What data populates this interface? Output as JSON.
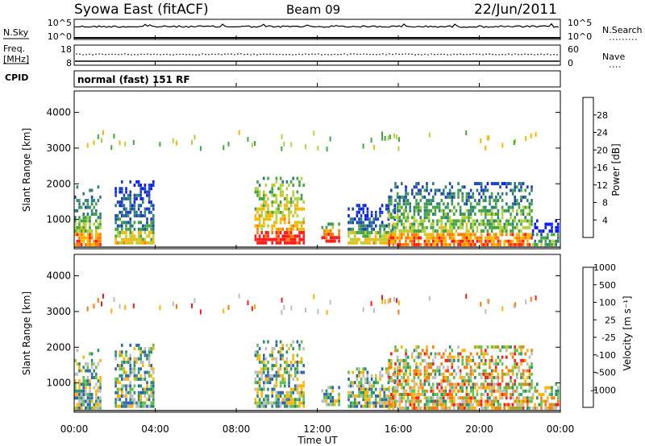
{
  "header": {
    "station": "Syowa East (fitACF)",
    "beam": "Beam 09",
    "date": "22/Jun/2011"
  },
  "sky_panel": {
    "left_label": "N.Sky",
    "left_ticks": [
      "10^5",
      "10^0"
    ],
    "right_label": "N.Search",
    "right_ticks": [
      "10^5",
      "10^0"
    ]
  },
  "freq_panel": {
    "left_label_1": "Freq.",
    "left_label_2": "[MHz]",
    "left_ticks": [
      "18",
      "8"
    ],
    "right_label": "Nave",
    "right_ticks": [
      "60",
      "0"
    ]
  },
  "cpid_panel": {
    "label": "CPID",
    "value": "normal (fast) 151 RF"
  },
  "x_axis": {
    "ticks": [
      "00:00",
      "04:00",
      "08:00",
      "12:00",
      "16:00",
      "20:00",
      "00:00"
    ],
    "label": "Time UT"
  },
  "chart_data": [
    {
      "type": "heatmap",
      "panel": "power",
      "ylabel": "Slant Range [km]",
      "y_ticks": [
        "1000",
        "2000",
        "3000",
        "4000"
      ],
      "xlim_hours": [
        0,
        24
      ],
      "ylim_km": [
        180,
        4600
      ],
      "colorbar": {
        "label": "Power [dB]",
        "tick_labels": [
          "4",
          "8",
          "12",
          "16",
          "20",
          "24",
          "28"
        ],
        "colors": [
          "#0a1aff",
          "#1b44b8",
          "#2e7f78",
          "#44a540",
          "#b2d13b",
          "#ffb400",
          "#ff7a00",
          "#ff1a1a"
        ]
      },
      "echo_regions": [
        {
          "t0": 0.0,
          "t1": 1.3,
          "r0": 250,
          "r1": 1900,
          "level": "high"
        },
        {
          "t0": 2.0,
          "t1": 3.9,
          "r0": 300,
          "r1": 2100,
          "level": "medium"
        },
        {
          "t0": 8.9,
          "t1": 11.3,
          "r0": 300,
          "r1": 2200,
          "level": "very_high"
        },
        {
          "t0": 12.2,
          "t1": 13.1,
          "r0": 350,
          "r1": 900,
          "level": "very_high"
        },
        {
          "t0": 13.5,
          "t1": 15.8,
          "r0": 300,
          "r1": 1400,
          "level": "medium"
        },
        {
          "t0": 15.5,
          "t1": 22.6,
          "r0": 250,
          "r1": 2000,
          "level": "high"
        },
        {
          "t0": 22.6,
          "t1": 23.9,
          "r0": 250,
          "r1": 1000,
          "level": "low"
        }
      ]
    },
    {
      "type": "heatmap",
      "panel": "velocity",
      "ylabel": "Slant Range [km]",
      "y_ticks": [
        "1000",
        "2000",
        "3000",
        "4000"
      ],
      "xlim_hours": [
        0,
        24
      ],
      "ylim_km": [
        180,
        4600
      ],
      "colorbar": {
        "label": "Velocity [m s⁻¹]",
        "tick_labels": [
          "1000",
          "500",
          "100",
          "25",
          "-25",
          "-100",
          "-500",
          "-1000"
        ],
        "colors": [
          "#1f3ad6",
          "#2f63b0",
          "#2e8d6d",
          "#5fc245",
          "#bdbdbd",
          "#ffb400",
          "#ff7a00",
          "#ff1a1a"
        ]
      }
    }
  ]
}
